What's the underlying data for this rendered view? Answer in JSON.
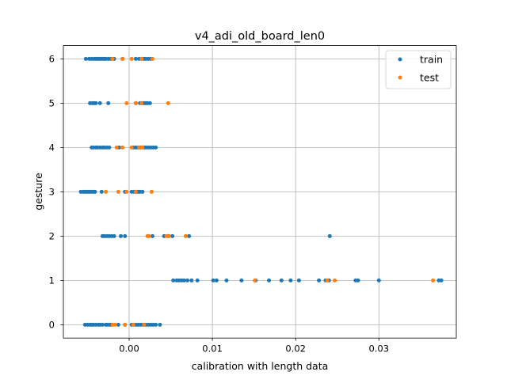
{
  "chart_data": {
    "type": "scatter",
    "title": "v4_adi_old_board_len0",
    "xlabel": "calibration with length data",
    "ylabel": "gesture",
    "xlim": [
      -0.0079,
      0.0393
    ],
    "ylim": [
      -0.3,
      6.3
    ],
    "xticks": [
      0.0,
      0.01,
      0.02,
      0.03
    ],
    "xtick_labels": [
      "0.00",
      "0.01",
      "0.02",
      "0.03"
    ],
    "yticks": [
      0,
      1,
      2,
      3,
      4,
      5,
      6
    ],
    "ytick_labels": [
      "0",
      "1",
      "2",
      "3",
      "4",
      "5",
      "6"
    ],
    "grid": true,
    "legend_position": "top-right",
    "series": [
      {
        "name": "train",
        "color": "#1f77b4",
        "points": [
          [
            -0.0052,
            6
          ],
          [
            -0.0048,
            6
          ],
          [
            -0.0045,
            6
          ],
          [
            -0.0042,
            6
          ],
          [
            -0.004,
            6
          ],
          [
            -0.0038,
            6
          ],
          [
            -0.0036,
            6
          ],
          [
            -0.0034,
            6
          ],
          [
            -0.0032,
            6
          ],
          [
            -0.003,
            6
          ],
          [
            -0.0028,
            6
          ],
          [
            -0.0025,
            6
          ],
          [
            -0.0022,
            6
          ],
          [
            -0.0018,
            6
          ],
          [
            -0.0008,
            6
          ],
          [
            0.0008,
            6
          ],
          [
            0.0012,
            6
          ],
          [
            0.0015,
            6
          ],
          [
            0.0018,
            6
          ],
          [
            0.002,
            6
          ],
          [
            0.0023,
            6
          ],
          [
            0.0026,
            6
          ],
          [
            -0.0047,
            5
          ],
          [
            -0.0044,
            5
          ],
          [
            -0.0042,
            5
          ],
          [
            -0.004,
            5
          ],
          [
            -0.0035,
            5
          ],
          [
            -0.0025,
            5
          ],
          [
            0.0008,
            5
          ],
          [
            0.0013,
            5
          ],
          [
            0.0016,
            5
          ],
          [
            0.0018,
            5
          ],
          [
            0.002,
            5
          ],
          [
            0.0022,
            5
          ],
          [
            0.0025,
            5
          ],
          [
            -0.0045,
            4
          ],
          [
            -0.0043,
            4
          ],
          [
            -0.004,
            4
          ],
          [
            -0.0038,
            4
          ],
          [
            -0.0035,
            4
          ],
          [
            -0.0032,
            4
          ],
          [
            -0.003,
            4
          ],
          [
            -0.0027,
            4
          ],
          [
            -0.0024,
            4
          ],
          [
            -0.0012,
            4
          ],
          [
            0.0005,
            4
          ],
          [
            0.0008,
            4
          ],
          [
            0.0011,
            4
          ],
          [
            0.0014,
            4
          ],
          [
            0.0018,
            4
          ],
          [
            0.002,
            4
          ],
          [
            0.0023,
            4
          ],
          [
            0.0026,
            4
          ],
          [
            0.0029,
            4
          ],
          [
            0.0032,
            4
          ],
          [
            -0.0058,
            3
          ],
          [
            -0.0055,
            3
          ],
          [
            -0.0053,
            3
          ],
          [
            -0.0051,
            3
          ],
          [
            -0.0049,
            3
          ],
          [
            -0.0047,
            3
          ],
          [
            -0.0045,
            3
          ],
          [
            -0.0043,
            3
          ],
          [
            -0.0041,
            3
          ],
          [
            -0.0033,
            3
          ],
          [
            -0.0005,
            3
          ],
          [
            0.0003,
            3
          ],
          [
            0.0006,
            3
          ],
          [
            0.0009,
            3
          ],
          [
            0.0011,
            3
          ],
          [
            0.0013,
            3
          ],
          [
            0.0016,
            3
          ],
          [
            -0.0032,
            2
          ],
          [
            -0.003,
            2
          ],
          [
            -0.0027,
            2
          ],
          [
            -0.0024,
            2
          ],
          [
            -0.0021,
            2
          ],
          [
            -0.0018,
            2
          ],
          [
            -0.001,
            2
          ],
          [
            -0.0005,
            2
          ],
          [
            0.0028,
            2
          ],
          [
            0.0042,
            2
          ],
          [
            0.0047,
            2
          ],
          [
            0.0052,
            2
          ],
          [
            0.0072,
            2
          ],
          [
            0.0241,
            2
          ],
          [
            0.0053,
            1
          ],
          [
            0.0057,
            1
          ],
          [
            0.006,
            1
          ],
          [
            0.0063,
            1
          ],
          [
            0.0066,
            1
          ],
          [
            0.007,
            1
          ],
          [
            0.0075,
            1
          ],
          [
            0.0082,
            1
          ],
          [
            0.0101,
            1
          ],
          [
            0.0105,
            1
          ],
          [
            0.0117,
            1
          ],
          [
            0.0135,
            1
          ],
          [
            0.0152,
            1
          ],
          [
            0.0168,
            1
          ],
          [
            0.0183,
            1
          ],
          [
            0.0194,
            1
          ],
          [
            0.0204,
            1
          ],
          [
            0.0228,
            1
          ],
          [
            0.0236,
            1
          ],
          [
            0.024,
            1
          ],
          [
            0.0272,
            1
          ],
          [
            0.0275,
            1
          ],
          [
            0.03,
            1
          ],
          [
            0.0372,
            1
          ],
          [
            0.0375,
            1
          ],
          [
            -0.0053,
            0
          ],
          [
            -0.005,
            0
          ],
          [
            -0.0047,
            0
          ],
          [
            -0.0045,
            0
          ],
          [
            -0.0043,
            0
          ],
          [
            -0.004,
            0
          ],
          [
            -0.0037,
            0
          ],
          [
            -0.0035,
            0
          ],
          [
            -0.0032,
            0
          ],
          [
            -0.0028,
            0
          ],
          [
            -0.0026,
            0
          ],
          [
            -0.0023,
            0
          ],
          [
            -0.0021,
            0
          ],
          [
            -0.0013,
            0
          ],
          [
            -0.0005,
            0
          ],
          [
            0.0003,
            0
          ],
          [
            0.0008,
            0
          ],
          [
            0.0011,
            0
          ],
          [
            0.0014,
            0
          ],
          [
            0.0017,
            0
          ],
          [
            0.002,
            0
          ],
          [
            0.0023,
            0
          ],
          [
            0.0026,
            0
          ],
          [
            0.0029,
            0
          ],
          [
            0.0032,
            0
          ],
          [
            0.0037,
            0
          ]
        ]
      },
      {
        "name": "test",
        "color": "#ff7f0e",
        "points": [
          [
            -0.002,
            6
          ],
          [
            -0.0008,
            6
          ],
          [
            0.0003,
            6
          ],
          [
            0.0015,
            6
          ],
          [
            0.0028,
            6
          ],
          [
            -0.0003,
            5
          ],
          [
            0.0008,
            5
          ],
          [
            0.0015,
            5
          ],
          [
            0.0047,
            5
          ],
          [
            -0.0015,
            4
          ],
          [
            -0.0008,
            4
          ],
          [
            0.0003,
            4
          ],
          [
            0.0012,
            4
          ],
          [
            0.0016,
            4
          ],
          [
            -0.0028,
            3
          ],
          [
            -0.0013,
            3
          ],
          [
            -0.0003,
            3
          ],
          [
            0.0008,
            3
          ],
          [
            0.0027,
            3
          ],
          [
            0.0022,
            2
          ],
          [
            0.0024,
            2
          ],
          [
            0.0045,
            2
          ],
          [
            0.0048,
            2
          ],
          [
            0.0068,
            2
          ],
          [
            0.0151,
            1
          ],
          [
            0.0238,
            1
          ],
          [
            0.0247,
            1
          ],
          [
            0.0365,
            1
          ],
          [
            -0.002,
            0
          ],
          [
            -0.0017,
            0
          ],
          [
            -0.0005,
            0
          ],
          [
            0.0005,
            0
          ],
          [
            0.0018,
            0
          ]
        ]
      }
    ]
  }
}
